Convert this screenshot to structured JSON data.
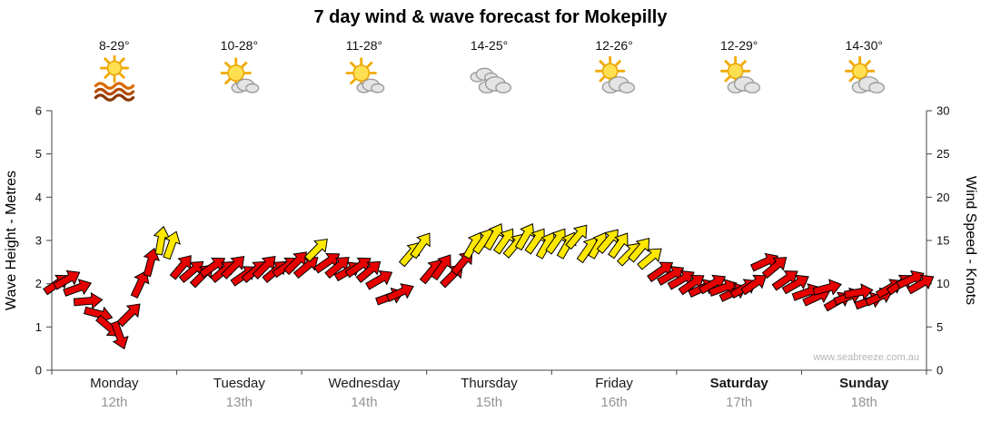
{
  "title": "7 day wind & wave forecast for Mokepilly",
  "watermark": "www.seabreeze.com.au",
  "left_axis": {
    "label": "Wave Height - Metres",
    "max": 6,
    "ticks": [
      0,
      1,
      2,
      3,
      4,
      5,
      6
    ]
  },
  "right_axis": {
    "label": "Wind Speed - Knots",
    "max": 30,
    "ticks": [
      0,
      5,
      10,
      15,
      20,
      25,
      30
    ]
  },
  "days": [
    {
      "name": "Monday",
      "date": "12th",
      "temp": "8-29°",
      "icon": "sun-waves",
      "weekend": false
    },
    {
      "name": "Tuesday",
      "date": "13th",
      "temp": "10-28°",
      "icon": "mostly-sunny",
      "weekend": false
    },
    {
      "name": "Wednesday",
      "date": "14th",
      "temp": "11-28°",
      "icon": "mostly-sunny",
      "weekend": false
    },
    {
      "name": "Thursday",
      "date": "15th",
      "temp": "14-25°",
      "icon": "cloudy",
      "weekend": false
    },
    {
      "name": "Friday",
      "date": "16th",
      "temp": "12-26°",
      "icon": "sun-cloud",
      "weekend": false
    },
    {
      "name": "Saturday",
      "date": "17th",
      "temp": "12-29°",
      "icon": "sun-cloud",
      "weekend": true
    },
    {
      "name": "Sunday",
      "date": "18th",
      "temp": "14-30°",
      "icon": "sun-cloud",
      "weekend": true
    }
  ],
  "chart_data": {
    "type": "wind-arrow-timeline",
    "title": "7 day wind & wave forecast for Mokepilly",
    "x_categories": [
      "Monday 12th",
      "Tuesday 13th",
      "Wednesday 14th",
      "Thursday 15th",
      "Friday 16th",
      "Saturday 17th",
      "Sunday 18th"
    ],
    "samples_per_day": 12,
    "wave_axis": {
      "label": "Wave Height - Metres",
      "range": [
        0,
        6
      ]
    },
    "wind_axis": {
      "label": "Wind Speed - Knots",
      "range": [
        0,
        30
      ]
    },
    "color_map": {
      "r": "#e60000",
      "y": "#ffe800"
    },
    "series": [
      {
        "day": "Monday",
        "speeds_kn": [
          10,
          10.5,
          9.5,
          8,
          6.5,
          5,
          4,
          6.5,
          10,
          12.5,
          15,
          14.5
        ],
        "dirs_deg": [
          55,
          60,
          70,
          85,
          105,
          130,
          160,
          45,
          25,
          15,
          10,
          20
        ],
        "colors": [
          "r",
          "r",
          "r",
          "r",
          "r",
          "r",
          "r",
          "r",
          "r",
          "r",
          "y",
          "y"
        ]
      },
      {
        "day": "Tuesday",
        "speeds_kn": [
          12,
          11.5,
          11,
          12,
          11.5,
          12,
          11,
          11.5,
          12,
          11.5,
          12,
          12.5
        ],
        "dirs_deg": [
          40,
          50,
          45,
          55,
          50,
          45,
          55,
          50,
          45,
          50,
          55,
          45
        ],
        "colors": [
          "r",
          "r",
          "r",
          "r",
          "r",
          "r",
          "r",
          "r",
          "r",
          "r",
          "r",
          "r"
        ]
      },
      {
        "day": "Wednesday",
        "speeds_kn": [
          12,
          14,
          12.5,
          12,
          11.5,
          12,
          11.5,
          10.5,
          8.5,
          9,
          13.5,
          14.5
        ],
        "dirs_deg": [
          50,
          45,
          55,
          50,
          60,
          55,
          50,
          60,
          70,
          65,
          40,
          35
        ],
        "colors": [
          "r",
          "y",
          "r",
          "r",
          "r",
          "r",
          "r",
          "r",
          "r",
          "r",
          "y",
          "y"
        ]
      },
      {
        "day": "Thursday",
        "speeds_kn": [
          11.5,
          12,
          11,
          12.5,
          14.5,
          15,
          15.5,
          15,
          14.5,
          15.5,
          15,
          14.5
        ],
        "dirs_deg": [
          40,
          35,
          45,
          40,
          30,
          35,
          30,
          35,
          40,
          30,
          35,
          30
        ],
        "colors": [
          "r",
          "r",
          "r",
          "r",
          "y",
          "y",
          "y",
          "y",
          "y",
          "y",
          "y",
          "y"
        ]
      },
      {
        "day": "Friday",
        "speeds_kn": [
          15,
          14.5,
          15.5,
          14,
          14.5,
          15,
          14.5,
          13.5,
          14,
          13,
          11.5,
          11
        ],
        "dirs_deg": [
          35,
          30,
          40,
          35,
          30,
          40,
          35,
          45,
          40,
          50,
          55,
          60
        ],
        "colors": [
          "y",
          "y",
          "y",
          "y",
          "y",
          "y",
          "y",
          "y",
          "y",
          "y",
          "r",
          "r"
        ]
      },
      {
        "day": "Saturday",
        "speeds_kn": [
          10.5,
          10,
          9.5,
          10,
          9.5,
          9,
          9.5,
          10,
          12.5,
          12,
          10.5,
          10
        ],
        "dirs_deg": [
          60,
          55,
          65,
          60,
          70,
          65,
          60,
          55,
          65,
          50,
          55,
          60
        ],
        "colors": [
          "r",
          "r",
          "r",
          "r",
          "r",
          "r",
          "r",
          "r",
          "r",
          "r",
          "r",
          "r"
        ]
      },
      {
        "day": "Sunday",
        "speeds_kn": [
          9,
          8.5,
          9.5,
          8,
          8.5,
          9,
          8,
          8.5,
          9.5,
          10,
          10.5,
          10
        ],
        "dirs_deg": [
          70,
          65,
          75,
          60,
          70,
          80,
          70,
          65,
          60,
          55,
          65,
          60
        ],
        "colors": [
          "r",
          "r",
          "r",
          "r",
          "r",
          "r",
          "r",
          "r",
          "r",
          "r",
          "r",
          "r"
        ]
      }
    ]
  }
}
